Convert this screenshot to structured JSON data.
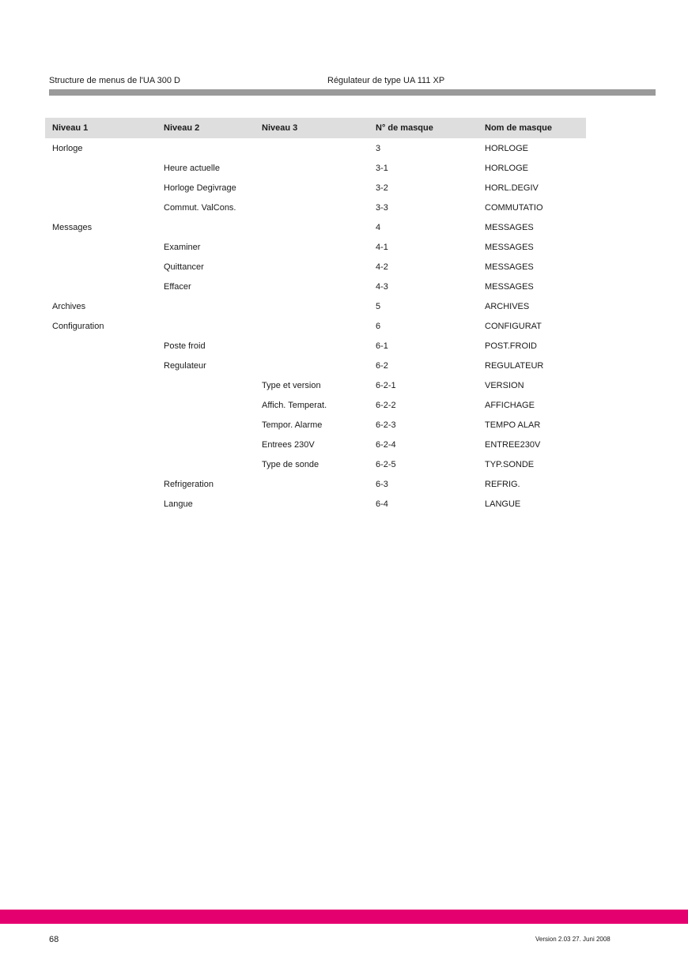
{
  "header": {
    "left": "Structure de menus de l'UA 300 D",
    "right": "Régulateur de type UA 111 XP"
  },
  "colors": {
    "header_bar": "#9a9a9a",
    "footer_bar": "#e5006f",
    "table_header_bg": "#dedede"
  },
  "table": {
    "columns": [
      "Niveau 1",
      "Niveau 2",
      "Niveau 3",
      "N° de masque",
      "Nom de masque"
    ],
    "rows": [
      [
        "Horloge",
        "",
        "",
        "3",
        "HORLOGE"
      ],
      [
        "",
        "Heure actuelle",
        "",
        "3-1",
        "HORLOGE"
      ],
      [
        "",
        "Horloge Degivrage",
        "",
        "3-2",
        "HORL.DEGIV"
      ],
      [
        "",
        "Commut. ValCons.",
        "",
        "3-3",
        "COMMUTATIO"
      ],
      [
        "Messages",
        "",
        "",
        "4",
        "MESSAGES"
      ],
      [
        "",
        "Examiner",
        "",
        "4-1",
        "MESSAGES"
      ],
      [
        "",
        "Quittancer",
        "",
        "4-2",
        "MESSAGES"
      ],
      [
        "",
        "Effacer",
        "",
        "4-3",
        "MESSAGES"
      ],
      [
        "Archives",
        "",
        "",
        "5",
        "ARCHIVES"
      ],
      [
        "Configuration",
        "",
        "",
        "6",
        "CONFIGURAT"
      ],
      [
        "",
        "Poste froid",
        "",
        "6-1",
        "POST.FROID"
      ],
      [
        "",
        "Regulateur",
        "",
        "6-2",
        "REGULATEUR"
      ],
      [
        "",
        "",
        "Type et version",
        "6-2-1",
        "VERSION"
      ],
      [
        "",
        "",
        "Affich. Temperat.",
        "6-2-2",
        "AFFICHAGE"
      ],
      [
        "",
        "",
        "Tempor. Alarme",
        "6-2-3",
        "TEMPO ALAR"
      ],
      [
        "",
        "",
        "Entrees 230V",
        "6-2-4",
        "ENTREE230V"
      ],
      [
        "",
        "",
        "Type de sonde",
        "6-2-5",
        "TYP.SONDE"
      ],
      [
        "",
        "Refrigeration",
        "",
        "6-3",
        "REFRIG."
      ],
      [
        "",
        "Langue",
        "",
        "6-4",
        "LANGUE"
      ]
    ]
  },
  "footer": {
    "page_number": "68",
    "version": "Version 2.03   27. Juni 2008"
  }
}
